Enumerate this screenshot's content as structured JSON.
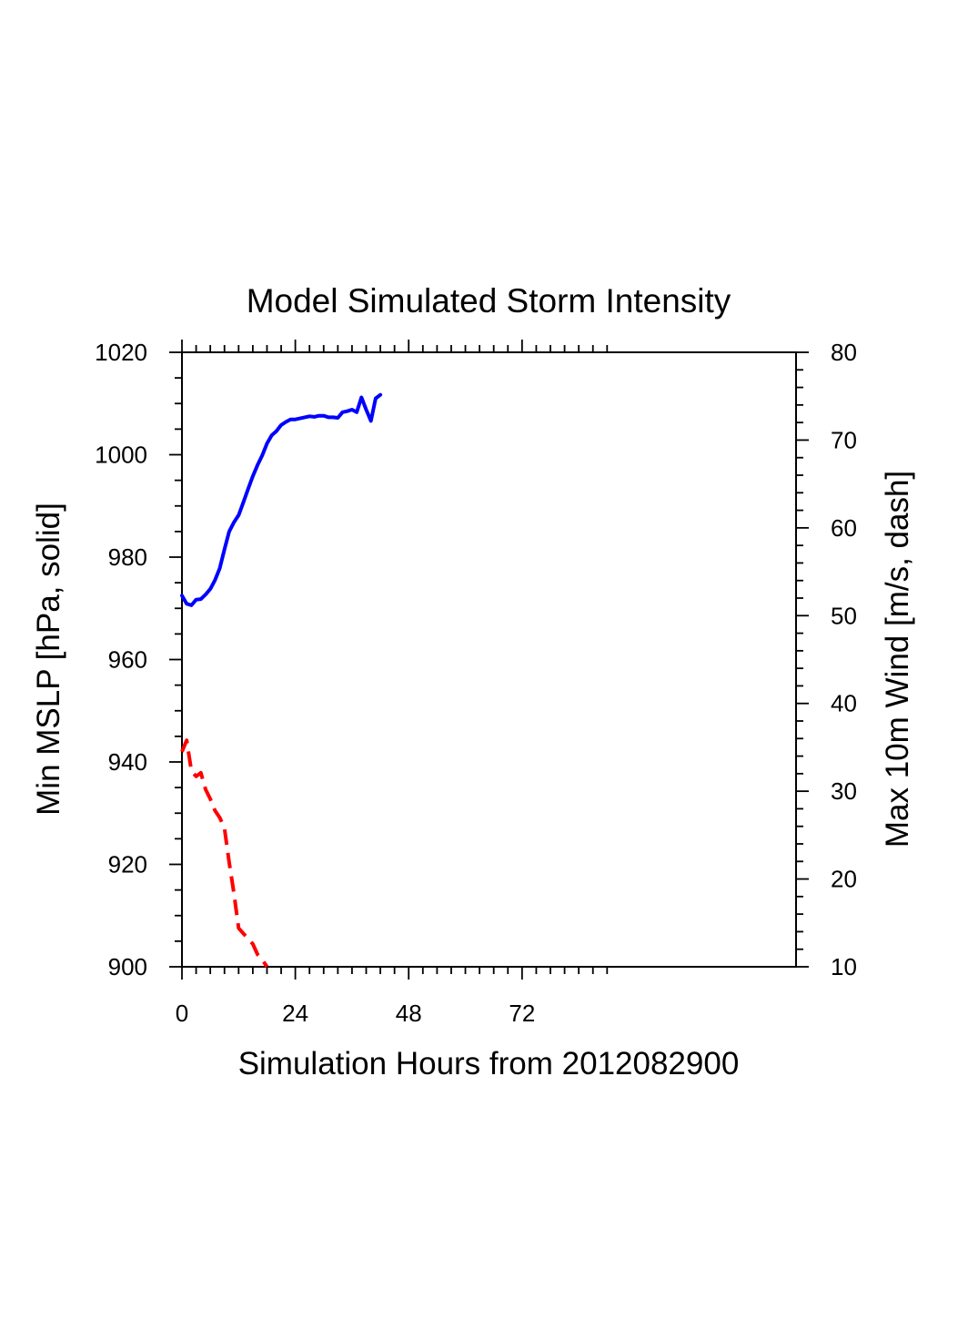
{
  "chart_data": {
    "type": "line",
    "title": "Model Simulated Storm Intensity",
    "xlabel": "Simulation Hours from 2012082900",
    "ylabel_left": "Min MSLP  [hPa, solid]",
    "ylabel_right": "Max 10m Wind  [m/s, dash]",
    "xlim": [
      0,
      130
    ],
    "ylim_left": [
      900,
      1020
    ],
    "ylim_right": [
      10,
      80
    ],
    "x_ticks": [
      0,
      24,
      48,
      72
    ],
    "x_tick_labels": [
      "0",
      "24",
      "48",
      "72"
    ],
    "x_minor_ticks_max": 90,
    "y_left_ticks": [
      900,
      920,
      940,
      960,
      980,
      1000,
      1020
    ],
    "y_left_tick_labels": [
      "900",
      "920",
      "940",
      "960",
      "980",
      "1000",
      "1020"
    ],
    "y_right_ticks": [
      10,
      20,
      30,
      40,
      50,
      60,
      70,
      80
    ],
    "y_right_tick_labels": [
      "10",
      "20",
      "30",
      "40",
      "50",
      "60",
      "70",
      "80"
    ],
    "grid": false,
    "series": [
      {
        "name": "Min MSLP",
        "axis": "left",
        "style": "solid",
        "color": "#0000ff",
        "x": [
          0,
          1,
          2,
          3,
          4,
          5,
          6,
          7,
          8,
          9,
          10,
          11,
          12,
          13,
          14,
          15,
          16,
          17,
          18,
          19,
          20,
          21,
          22,
          23,
          24,
          25,
          26,
          27,
          28,
          29,
          30,
          31,
          32,
          33,
          34,
          35,
          36,
          37,
          38,
          39,
          40,
          41,
          42
        ],
        "values": [
          972.5,
          970.9,
          970.6,
          971.7,
          971.8,
          972.7,
          973.8,
          975.5,
          977.8,
          981.5,
          985.0,
          986.8,
          988.2,
          990.7,
          993.3,
          995.8,
          998.0,
          999.9,
          1002.2,
          1003.8,
          1004.6,
          1005.8,
          1006.4,
          1006.9,
          1006.9,
          1007.1,
          1007.3,
          1007.5,
          1007.4,
          1007.6,
          1007.6,
          1007.3,
          1007.3,
          1007.2,
          1008.3,
          1008.5,
          1008.8,
          1008.3,
          1011.2,
          1008.8,
          1006.6,
          1011.0,
          1011.7
        ]
      },
      {
        "name": "Max 10m Wind",
        "axis": "right",
        "style": "dashed",
        "color": "#ff0000",
        "x": [
          0,
          1,
          2,
          3,
          4,
          5,
          6,
          7,
          8,
          9,
          10,
          11,
          12,
          13,
          14,
          15,
          16,
          17,
          18
        ],
        "values": [
          34.5,
          35.8,
          32.3,
          31.7,
          32.1,
          30.2,
          29.1,
          27.8,
          27.0,
          25.8,
          21.9,
          18.4,
          14.4,
          13.8,
          13.2,
          12.6,
          11.4,
          10.8,
          10.0
        ]
      }
    ]
  }
}
